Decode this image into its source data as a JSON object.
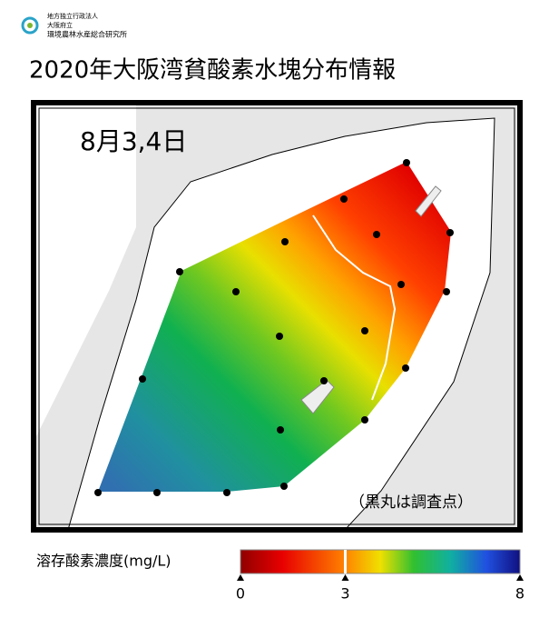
{
  "header": {
    "org_lines": [
      "地方独立行政法人",
      "大阪府立",
      "環境農林水産総合研究所"
    ],
    "title": "2020年大阪湾貧酸素水塊分布情報"
  },
  "map": {
    "date": "8月3,4日",
    "note": "（黒丸は調査点）"
  },
  "legend": {
    "title": "溶存酸素濃度(mg/L)",
    "range": [
      0,
      8
    ],
    "ticks": [
      0,
      3,
      8
    ]
  }
}
